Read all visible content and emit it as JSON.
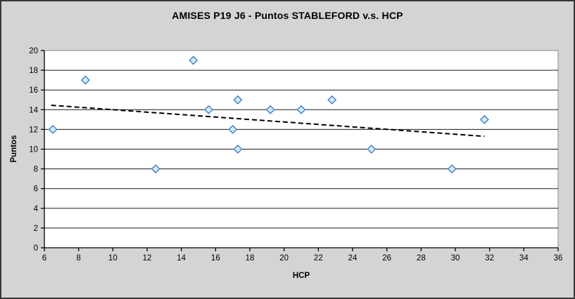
{
  "window": {
    "background": "#D4D4D4",
    "border_color": "#383838"
  },
  "chart_data": {
    "type": "scatter",
    "title": "AMISES P19 J6 - Puntos STABLEFORD v.s. HCP",
    "xlabel": "HCP",
    "ylabel": "Puntos",
    "xlim": [
      6,
      36
    ],
    "ylim": [
      0,
      20
    ],
    "xticks": [
      6,
      8,
      10,
      12,
      14,
      16,
      18,
      20,
      22,
      24,
      26,
      28,
      30,
      32,
      34,
      36
    ],
    "yticks": [
      0,
      2,
      4,
      6,
      8,
      10,
      12,
      14,
      16,
      18,
      20
    ],
    "grid": "horizontal",
    "legend": "none",
    "colors": {
      "plot_background": "#FFFFFF",
      "plot_border": "#8C8C8C",
      "gridline": "#1A1A1A",
      "axis_line": "#000000",
      "marker_fill": "#CCECFF",
      "marker_stroke": "#4A7EBB",
      "trendline": "#000000"
    },
    "series": [
      {
        "name": "Puntos STABLEFORD",
        "marker": "diamond",
        "points": [
          [
            6.5,
            12
          ],
          [
            8.4,
            17
          ],
          [
            12.5,
            8
          ],
          [
            14.7,
            19
          ],
          [
            15.6,
            14
          ],
          [
            17.0,
            12
          ],
          [
            17.3,
            15
          ],
          [
            17.3,
            10
          ],
          [
            19.2,
            14
          ],
          [
            21.0,
            14
          ],
          [
            22.8,
            15
          ],
          [
            25.1,
            10
          ],
          [
            29.8,
            8
          ],
          [
            31.7,
            13
          ]
        ]
      }
    ],
    "trendline": {
      "style": "dashed",
      "x1": 6.4,
      "y1": 14.45,
      "x2": 31.7,
      "y2": 11.3
    }
  }
}
